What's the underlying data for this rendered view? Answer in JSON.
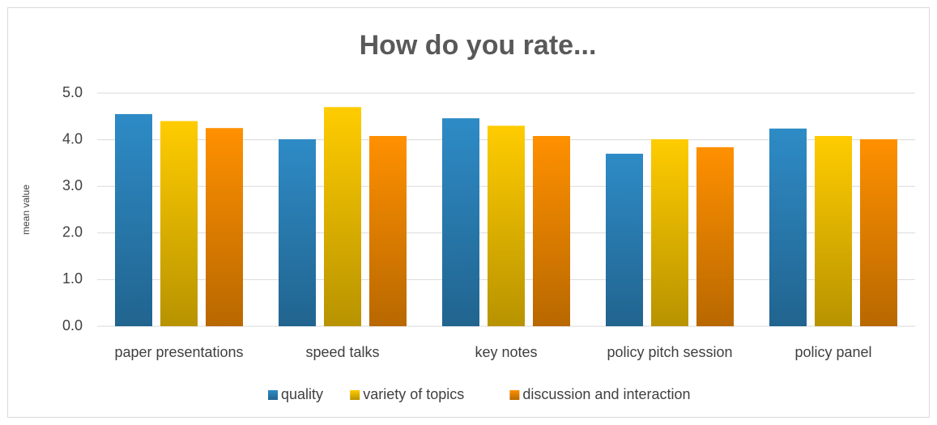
{
  "chart_data": {
    "type": "bar",
    "title": "How do you rate...",
    "y_label": "mean value",
    "categories": [
      "paper presentations",
      "speed talks",
      "key notes",
      "policy pitch session",
      "policy panel"
    ],
    "series": [
      {
        "name": "quality",
        "color": "#2e8bc6",
        "values": [
          4.55,
          4.01,
          4.46,
          3.7,
          4.24
        ]
      },
      {
        "name": "variety of topics",
        "color": "#ffcc00",
        "values": [
          4.4,
          4.7,
          4.3,
          4.01,
          4.08
        ]
      },
      {
        "name": "discussion and interaction",
        "color": "#ff9000",
        "values": [
          4.25,
          4.08,
          4.08,
          3.84,
          4.01
        ]
      }
    ],
    "ylim": [
      0,
      5
    ],
    "yticks": [
      {
        "value": 0,
        "label": "0.0"
      },
      {
        "value": 1,
        "label": "1.0"
      },
      {
        "value": 2,
        "label": "2.0"
      },
      {
        "value": 3,
        "label": "3.0"
      },
      {
        "value": 4,
        "label": "4.0"
      },
      {
        "value": 5,
        "label": "5.0"
      }
    ],
    "grid": true,
    "legend": "bottom"
  }
}
